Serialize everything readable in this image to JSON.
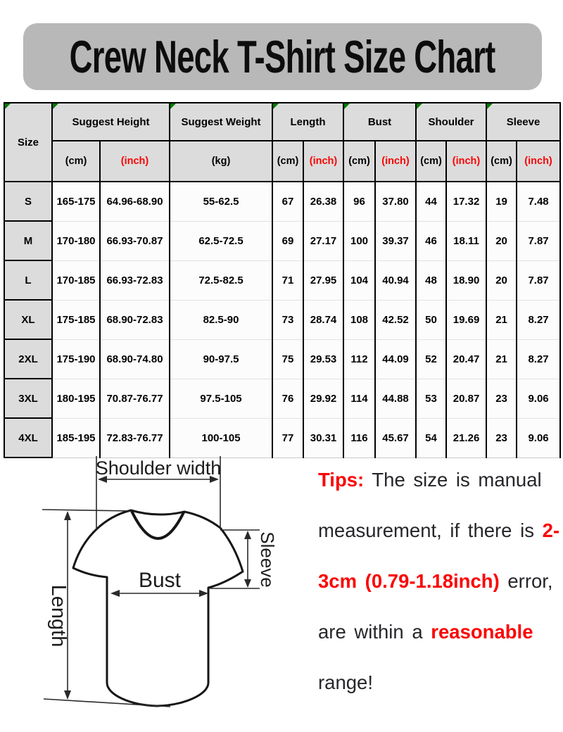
{
  "chart_data": {
    "type": "table",
    "title": "Crew Neck T-Shirt Size Chart",
    "columns": [
      {
        "label": "Size"
      },
      {
        "label": "Suggest Height",
        "units": [
          {
            "label": "(cm)",
            "red": false
          },
          {
            "label": "(inch)",
            "red": true
          }
        ]
      },
      {
        "label": "Suggest Weight",
        "units": [
          {
            "label": "(kg)",
            "red": false
          }
        ]
      },
      {
        "label": "Length",
        "units": [
          {
            "label": "(cm)",
            "red": false
          },
          {
            "label": "(inch)",
            "red": true
          }
        ]
      },
      {
        "label": "Bust",
        "units": [
          {
            "label": "(cm)",
            "red": false
          },
          {
            "label": "(inch)",
            "red": true
          }
        ]
      },
      {
        "label": "Shoulder",
        "units": [
          {
            "label": "(cm)",
            "red": false
          },
          {
            "label": "(inch)",
            "red": true
          }
        ]
      },
      {
        "label": "Sleeve",
        "units": [
          {
            "label": "(cm)",
            "red": false
          },
          {
            "label": "(inch)",
            "red": true
          }
        ]
      }
    ],
    "rows": [
      {
        "size": "S",
        "values": [
          "165-175",
          "64.96-68.90",
          "55-62.5",
          "67",
          "26.38",
          "96",
          "37.80",
          "44",
          "17.32",
          "19",
          "7.48"
        ]
      },
      {
        "size": "M",
        "values": [
          "170-180",
          "66.93-70.87",
          "62.5-72.5",
          "69",
          "27.17",
          "100",
          "39.37",
          "46",
          "18.11",
          "20",
          "7.87"
        ]
      },
      {
        "size": "L",
        "values": [
          "170-185",
          "66.93-72.83",
          "72.5-82.5",
          "71",
          "27.95",
          "104",
          "40.94",
          "48",
          "18.90",
          "20",
          "7.87"
        ]
      },
      {
        "size": "XL",
        "values": [
          "175-185",
          "68.90-72.83",
          "82.5-90",
          "73",
          "28.74",
          "108",
          "42.52",
          "50",
          "19.69",
          "21",
          "8.27"
        ]
      },
      {
        "size": "2XL",
        "values": [
          "175-190",
          "68.90-74.80",
          "90-97.5",
          "75",
          "29.53",
          "112",
          "44.09",
          "52",
          "20.47",
          "21",
          "8.27"
        ]
      },
      {
        "size": "3XL",
        "values": [
          "180-195",
          "70.87-76.77",
          "97.5-105",
          "76",
          "29.92",
          "114",
          "44.88",
          "53",
          "20.87",
          "23",
          "9.06"
        ]
      },
      {
        "size": "4XL",
        "values": [
          "185-195",
          "72.83-76.77",
          "100-105",
          "77",
          "30.31",
          "116",
          "45.67",
          "54",
          "21.26",
          "23",
          "9.06"
        ]
      }
    ]
  },
  "diagram": {
    "labels": {
      "shoulder": "Shoulder width",
      "bust": "Bust",
      "length": "Length",
      "sleeve": "Sleeve"
    }
  },
  "tips": {
    "lines": [
      [
        {
          "text": "Tips:",
          "red": true
        },
        {
          "text": " The size is manual",
          "red": false
        }
      ],
      [
        {
          "text": "measurement, if there is ",
          "red": false
        },
        {
          "text": "2-",
          "red": true
        }
      ],
      [
        {
          "text": "3cm (0.79-1.18inch)",
          "red": true
        },
        {
          "text": " error,",
          "red": false
        }
      ],
      [
        {
          "text": "are within a ",
          "red": false
        },
        {
          "text": "reasonable",
          "red": true
        }
      ],
      [
        {
          "text": "range!",
          "red": false
        }
      ]
    ]
  },
  "colors": {
    "red": "#fb0404",
    "green": "#007a00",
    "bannerBg": "#b8b8b8",
    "headerBg": "#dcdcdc",
    "cellBg": "#fcfcfc",
    "tipsInk": "#26262b"
  }
}
